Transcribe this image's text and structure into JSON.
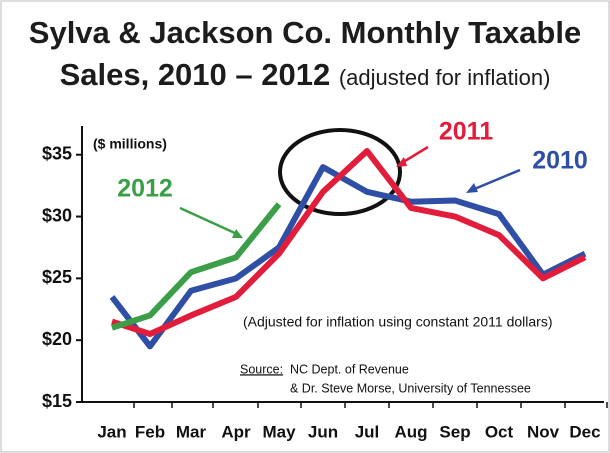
{
  "chart_data": {
    "type": "line",
    "title_lines": [
      "Sylva & Jackson Co. Monthly Taxable",
      "Sales, 2010 – 2012"
    ],
    "subtitle": "(adjusted for inflation)",
    "y_label": "($ millions)",
    "annotations": [
      "(Adjusted for inflation using constant 2011 dollars)",
      "Source:",
      "NC Dept. of Revenue",
      "& Dr. Steve Morse, University of Tennessee"
    ],
    "categories": [
      "Jan",
      "Feb",
      "Mar",
      "Apr",
      "May",
      "Jun",
      "Jul",
      "Aug",
      "Sep",
      "Oct",
      "Nov",
      "Dec"
    ],
    "series": [
      {
        "name": "2010",
        "color": "#2f4ea6",
        "values": [
          23.5,
          19.5,
          24,
          25,
          27.5,
          34,
          32,
          31.2,
          31.3,
          30.2,
          25.3,
          27
        ]
      },
      {
        "name": "2011",
        "color": "#e21d3c",
        "values": [
          21.5,
          20.5,
          22,
          23.5,
          27,
          32,
          35.3,
          30.7,
          30,
          28.5,
          25,
          26.7
        ]
      },
      {
        "name": "2012",
        "color": "#3a9f48",
        "values": [
          21,
          22,
          25.5,
          26.7,
          31,
          null,
          null,
          null,
          null,
          null,
          null,
          null
        ]
      }
    ],
    "ylim": [
      15,
      37
    ],
    "yticks": [
      {
        "value": 15,
        "label": "$15"
      },
      {
        "value": 20,
        "label": "$20"
      },
      {
        "value": 25,
        "label": "$25"
      },
      {
        "value": 30,
        "label": "$30"
      },
      {
        "value": 35,
        "label": "$35"
      }
    ]
  }
}
